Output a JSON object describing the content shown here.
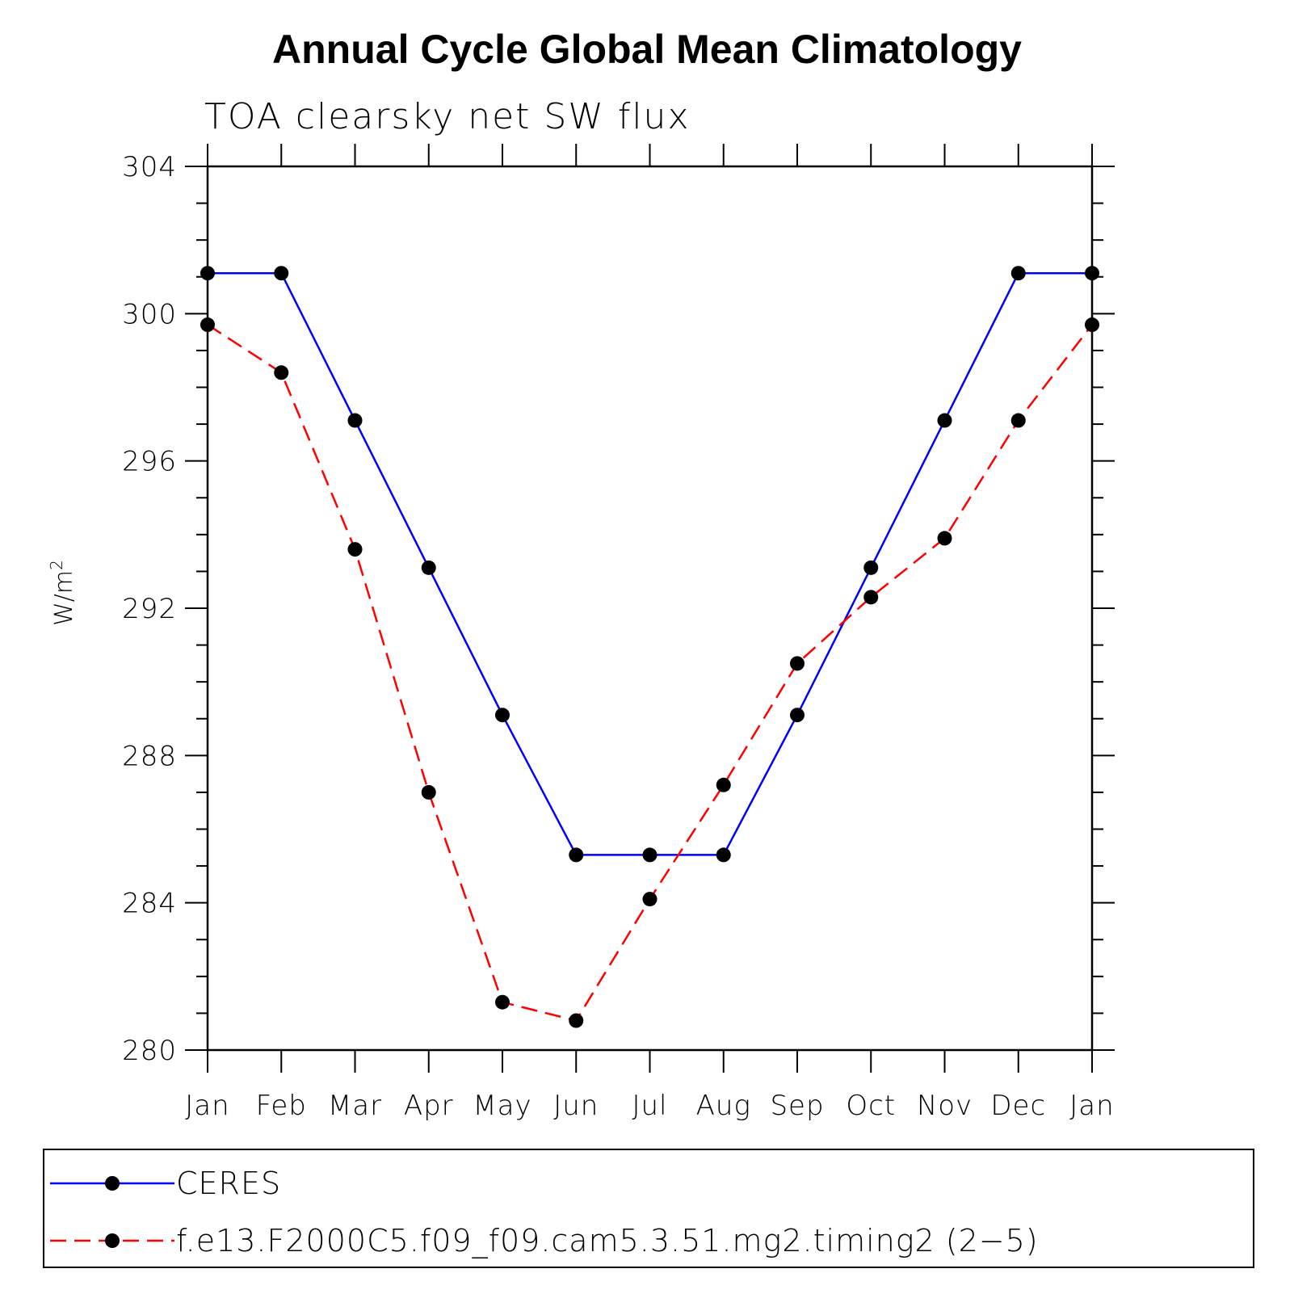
{
  "chart_data": {
    "type": "line",
    "title": "Annual Cycle Global Mean Climatology",
    "subtitle": "TOA clearsky net SW flux",
    "ylabel": "W/m",
    "ylabel_sup": "2",
    "ylim": [
      280,
      304
    ],
    "yticks": [
      280,
      284,
      288,
      292,
      296,
      300,
      304
    ],
    "categories": [
      "Jan",
      "Feb",
      "Mar",
      "Apr",
      "May",
      "Jun",
      "Jul",
      "Aug",
      "Sep",
      "Oct",
      "Nov",
      "Dec",
      "Jan"
    ],
    "grid": false,
    "legend_position": "bottom",
    "series": [
      {
        "name": "CERES",
        "color": "#0000ff",
        "dash": "solid",
        "marker": "filled-circle",
        "values": [
          301.1,
          301.1,
          297.1,
          293.1,
          289.1,
          285.3,
          285.3,
          285.3,
          289.1,
          293.1,
          297.1,
          301.1,
          301.1
        ]
      },
      {
        "name": "f.e13.F2000C5.f09_f09.cam5.3.51.mg2.timing2 (2−5)",
        "color": "#ff0000",
        "dash": "dashed",
        "marker": "filled-circle",
        "values": [
          299.7,
          298.4,
          293.6,
          287.0,
          281.3,
          280.8,
          284.1,
          287.2,
          290.5,
          292.3,
          293.9,
          297.1,
          299.7
        ]
      }
    ]
  }
}
